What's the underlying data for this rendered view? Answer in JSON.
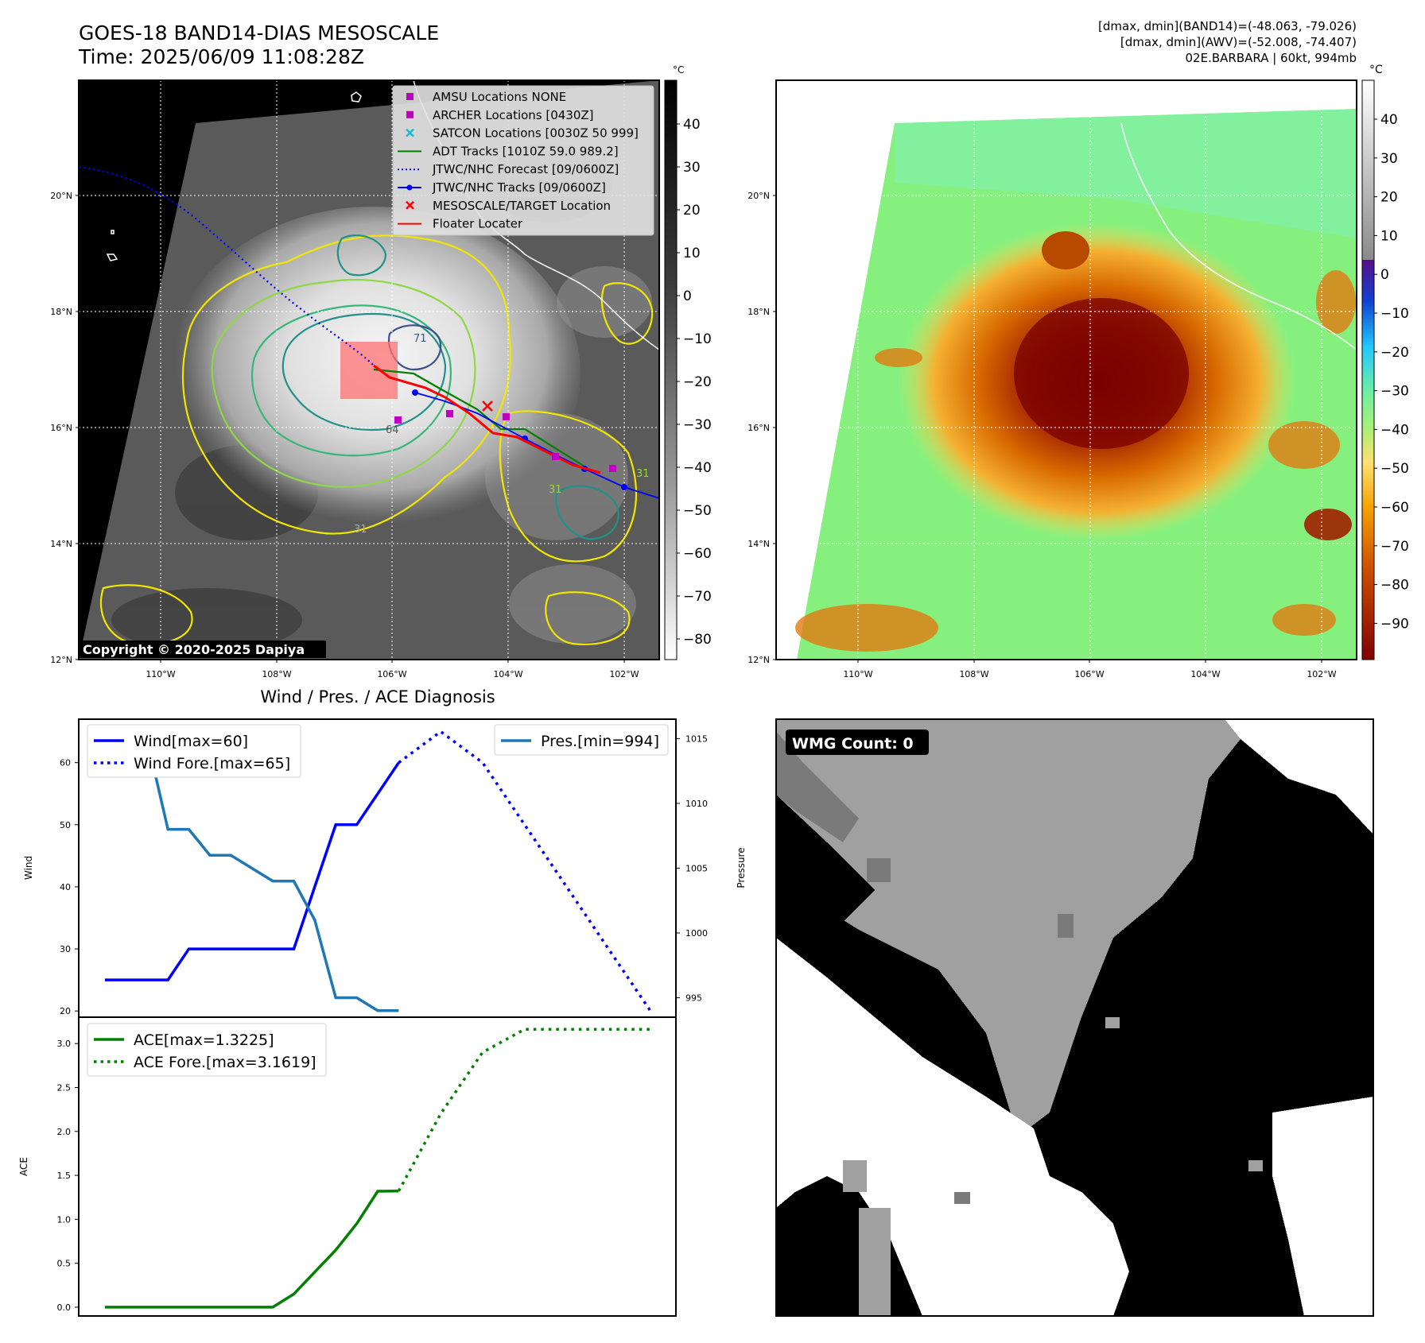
{
  "header": {
    "title": "GOES-18 BAND14-DIAS MESOSCALE",
    "time": "Time: 2025/06/09 11:08:28Z",
    "info_line1": "[dmax, dmin](BAND14)=(-48.063, -79.026)",
    "info_line2": "[dmax, dmin](AWV)=(-52.008, -74.407)",
    "info_line3": "02E.BARBARA | 60kt, 994mb"
  },
  "map_axes": {
    "lat_ticks": [
      "20°N",
      "18°N",
      "16°N",
      "14°N",
      "12°N"
    ],
    "lon_ticks": [
      "110°W",
      "108°W",
      "106°W",
      "104°W",
      "102°W"
    ]
  },
  "colors": {
    "wind": "#0000ff",
    "pressure": "#1f77b4",
    "ace": "#008000",
    "adt": "#008000",
    "jtwc": "#0000ff",
    "floater": "#ff0000",
    "marker_magenta": "#c000c0",
    "marker_cyan": "#17becf",
    "contour_yellow": "#f2e600",
    "contour_teal": "#21918c"
  },
  "ir_panel": {
    "copyright": "Copyright © 2020-2025 Dapiya",
    "cbar_unit": "°C",
    "cbar_ticks": [
      "40",
      "30",
      "20",
      "10",
      "0",
      "−10",
      "−20",
      "−30",
      "−40",
      "−50",
      "−60",
      "−70",
      "−80"
    ],
    "contour_labels": [
      "64",
      "31",
      "71",
      "31",
      "31"
    ],
    "legend": [
      {
        "label": "AMSU Locations NONE",
        "icon": "square-marker"
      },
      {
        "label": "ARCHER Locations [0430Z]",
        "icon": "square-marker"
      },
      {
        "label": "SATCON Locations [0030Z 50 999]",
        "icon": "x-marker"
      },
      {
        "label": "ADT Tracks [1010Z 59.0 989.2]",
        "icon": "solid-line"
      },
      {
        "label": "JTWC/NHC Forecast [09/0600Z]",
        "icon": "dotted-line"
      },
      {
        "label": "JTWC/NHC Tracks [09/0600Z]",
        "icon": "line-dot"
      },
      {
        "label": "MESOSCALE/TARGET Location",
        "icon": "x-marker"
      },
      {
        "label": "Floater Locater",
        "icon": "solid-line"
      }
    ]
  },
  "awv_panel": {
    "cbar_unit": "°C",
    "cbar_ticks": [
      "40",
      "30",
      "20",
      "10",
      "0",
      "−10",
      "−20",
      "−30",
      "−40",
      "−50",
      "−60",
      "−70",
      "−80",
      "−90"
    ]
  },
  "wmg_panel": {
    "label": "WMG Count: 0"
  },
  "chart_data": [
    {
      "type": "line",
      "title": "Wind / Pres. / ACE Diagnosis",
      "xlabel": "",
      "ylabel": "Wind",
      "y2label": "Pressure",
      "ylim": [
        19,
        67
      ],
      "y2lim": [
        993.5,
        1016.5
      ],
      "yticks": [
        "20",
        "30",
        "40",
        "50",
        "60"
      ],
      "y2ticks": [
        "995",
        "1000",
        "1005",
        "1010",
        "1015"
      ],
      "series": [
        {
          "name": "Wind[max=60]",
          "style": "solid",
          "x": [
            0,
            1,
            2,
            3,
            4,
            5,
            6,
            7,
            8,
            9,
            10,
            11,
            12,
            13,
            14
          ],
          "values": [
            25,
            25,
            25,
            25,
            30,
            30,
            30,
            30,
            30,
            30,
            40,
            50,
            50,
            55,
            60
          ]
        },
        {
          "name": "Wind Fore.[max=65]",
          "style": "dotted",
          "x": [
            14,
            16,
            18,
            20,
            22,
            24,
            26
          ],
          "values": [
            60,
            65,
            60,
            50,
            40,
            30,
            20
          ]
        },
        {
          "name": "Pres.[min=994]",
          "style": "solid",
          "axis": "right",
          "x": [
            0,
            1,
            2,
            3,
            4,
            5,
            6,
            7,
            8,
            9,
            10,
            11,
            12,
            13,
            14
          ],
          "values": [
            1015,
            1015,
            1015,
            1008,
            1008,
            1006,
            1006,
            1005,
            1004,
            1004,
            1001,
            995,
            995,
            994,
            994
          ]
        }
      ]
    },
    {
      "type": "line",
      "title": "",
      "xlabel": "",
      "ylabel": "ACE",
      "ylim": [
        -0.1,
        3.3
      ],
      "yticks": [
        "0.0",
        "0.5",
        "1.0",
        "1.5",
        "2.0",
        "2.5",
        "3.0"
      ],
      "series": [
        {
          "name": "ACE[max=1.3225]",
          "style": "solid",
          "x": [
            0,
            1,
            2,
            3,
            4,
            5,
            6,
            7,
            8,
            9,
            10,
            11,
            12,
            13,
            14
          ],
          "values": [
            0,
            0,
            0,
            0,
            0,
            0,
            0,
            0,
            0,
            0.15,
            0.4,
            0.65,
            0.95,
            1.32,
            1.3225
          ]
        },
        {
          "name": "ACE Fore.[max=3.1619]",
          "style": "dotted",
          "x": [
            14,
            16,
            18,
            20,
            22,
            24,
            26
          ],
          "values": [
            1.3225,
            2.2,
            2.9,
            3.1619,
            3.1619,
            3.1619,
            3.1619
          ]
        }
      ]
    }
  ]
}
